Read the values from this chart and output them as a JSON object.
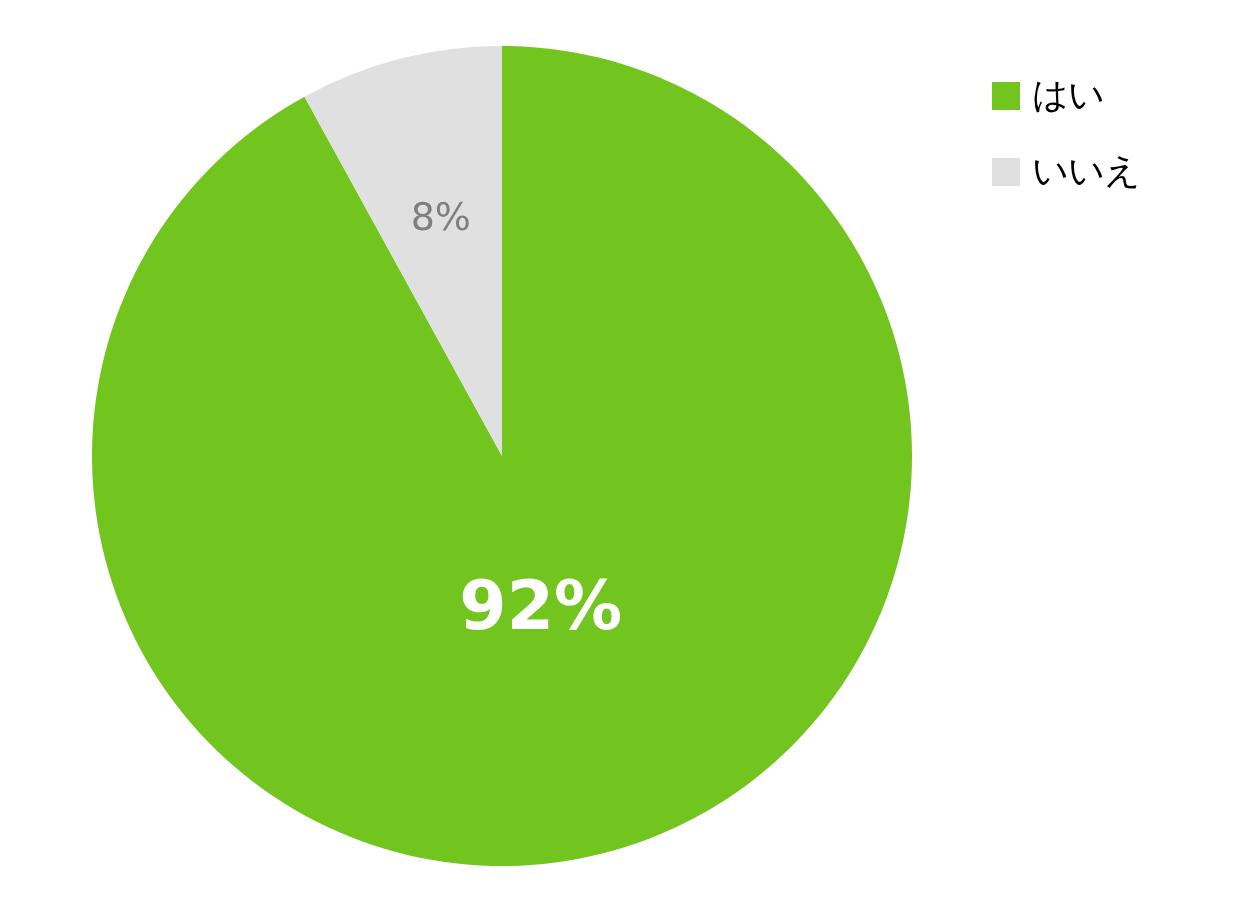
{
  "chart_data": {
    "type": "pie",
    "categories": [
      "はい",
      "いいえ"
    ],
    "values": [
      92,
      8
    ],
    "colors": [
      "#72c51f",
      "#e0e0e0"
    ],
    "value_labels": [
      "92%",
      "8%"
    ],
    "legend": "top right"
  }
}
